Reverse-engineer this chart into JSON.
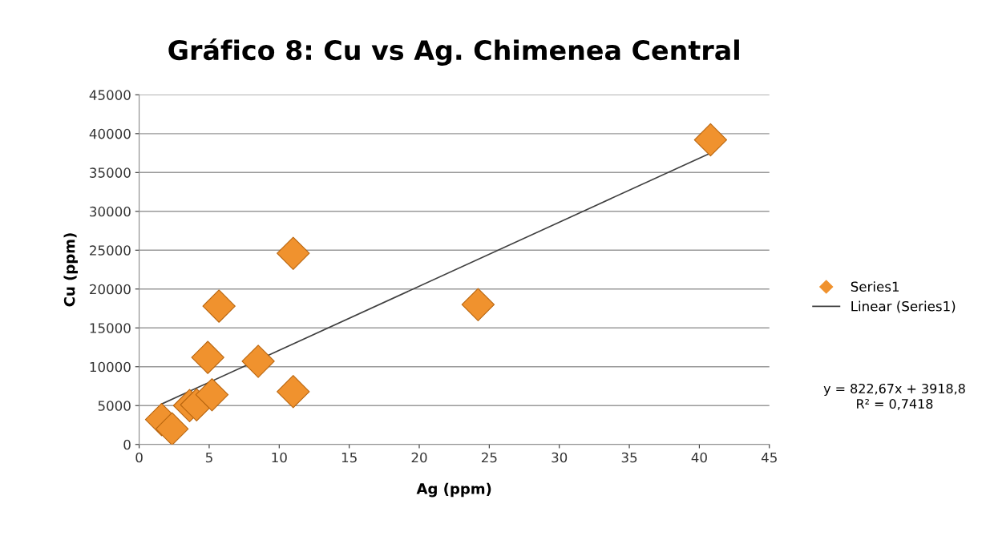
{
  "chart_data": {
    "type": "scatter",
    "title": "Gráfico 8: Cu vs Ag. Chimenea Central",
    "xlabel": "Ag (ppm)",
    "ylabel": "Cu (ppm)",
    "series": [
      {
        "name": "Series1",
        "color": "#f0922e",
        "marker": "diamond",
        "x": [
          1.6,
          2.35,
          3.6,
          4.1,
          5.2,
          4.9,
          5.7,
          8.5,
          11.0,
          11.0,
          24.2,
          40.8
        ],
        "values": [
          3200,
          2000,
          5000,
          5100,
          6400,
          11200,
          17800,
          10700,
          24600,
          6800,
          18000,
          39200
        ]
      },
      {
        "name": "Linear (Series1)",
        "type": "line",
        "color": "#404040",
        "marker": "none",
        "line_style": "solid",
        "x": [
          1.6,
          40.8
        ],
        "values": [
          5200,
          37500
        ]
      }
    ],
    "xlim": [
      0,
      45
    ],
    "xticks": [
      0,
      5,
      10,
      15,
      20,
      25,
      30,
      35,
      40,
      45
    ],
    "ylim": [
      0,
      45000
    ],
    "yticks": [
      0,
      5000,
      10000,
      15000,
      20000,
      25000,
      30000,
      35000,
      40000,
      45000
    ],
    "grid": "y",
    "legend": "right",
    "annotations": [
      "y = 822,67x + 3918,8\nR² = 0,7418"
    ]
  }
}
